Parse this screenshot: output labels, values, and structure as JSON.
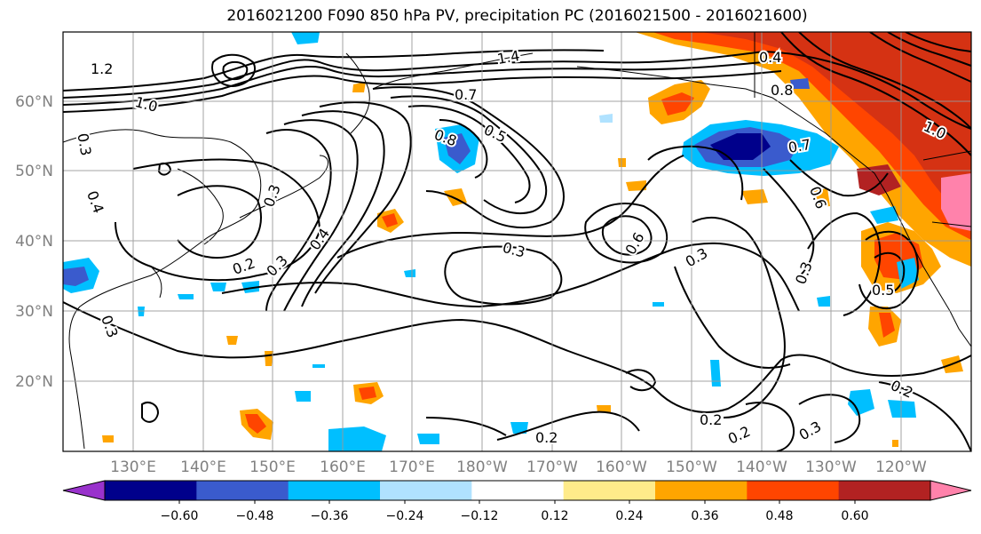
{
  "title": "2016021200 F090 850 hPa PV, precipitation PC (2016021500 - 2016021600)",
  "lat_labels": [
    "60°N",
    "50°N",
    "40°N",
    "30°N",
    "20°N"
  ],
  "lon_labels": [
    "130°E",
    "140°E",
    "150°E",
    "160°E",
    "170°E",
    "180°W",
    "170°W",
    "160°W",
    "150°W",
    "140°W",
    "130°W",
    "120°W"
  ],
  "contour_labels": [
    "1.2",
    "1.0",
    "0.3",
    "0.4",
    "0.7",
    "0.8",
    "0.5",
    "0.2",
    "0.3",
    "0.4",
    "0.3",
    "0.6",
    "0.3",
    "0.3",
    "0.2",
    "0.2",
    "0.6",
    "0.7",
    "0.8",
    "1.0",
    "0.3",
    "0.5",
    "0.2",
    "0.2",
    "0.3",
    "0.3",
    "1.4",
    "0.4"
  ],
  "colorbar": {
    "colors": [
      "#9932cc",
      "#00008b",
      "#3a5bcd",
      "#00bfff",
      "#b0e2ff",
      "#ffffff",
      "#ffeb8a",
      "#ffa500",
      "#ff4500",
      "#b22222",
      "#ff82ab"
    ],
    "tick_labels": [
      "−0.60",
      "−0.48",
      "−0.36",
      "−0.24",
      "−0.12",
      "0.12",
      "0.24",
      "0.36",
      "0.48",
      "0.60"
    ]
  },
  "colors": {
    "grid": "#9a9a9a",
    "contour": "#000000",
    "coast": "#000000",
    "axis_label": "#808080"
  }
}
